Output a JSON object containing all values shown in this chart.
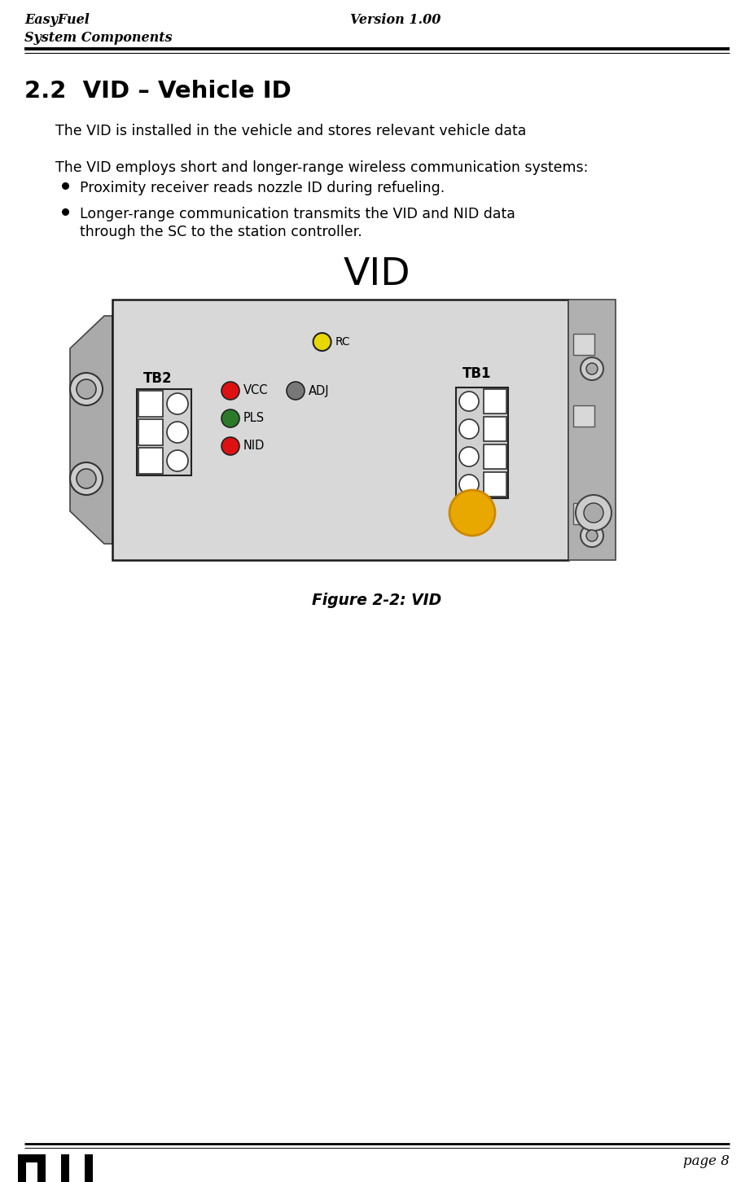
{
  "header_left_line1": "EasyFuel",
  "header_left_line2": "System Components",
  "header_right": "Version 1.00",
  "section_title": "2.2  VID – Vehicle ID",
  "para1": "The VID is installed in the vehicle and stores relevant vehicle data",
  "para2": "The VID employs short and longer-range wireless communication systems:",
  "bullet1": "Proximity receiver reads nozzle ID during refueling.",
  "bullet2_line1": "Longer-range communication transmits the VID and NID data",
  "bullet2_line2": "through the SC to the station controller.",
  "fig_title": "VID",
  "fig_caption": "Figure 2-2: VID",
  "footer_page": "page 8",
  "bg_color": "#ffffff",
  "device_bg": "#d8d8d8",
  "device_border": "#1a1a1a",
  "led_red": "#dd1111",
  "led_green": "#2a7a2a",
  "led_yellow_small": "#e8d800",
  "led_yellow_large": "#e8a800",
  "led_gray": "#787878",
  "led_outline": "#222222",
  "side_gray": "#aaaaaa",
  "connector_border": "#222222"
}
